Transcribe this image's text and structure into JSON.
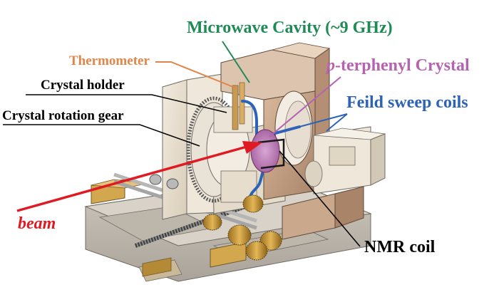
{
  "diagram": {
    "labels": {
      "microwave_cavity": "Microwave Cavity (~9 GHz)",
      "thermometer": "Thermometer",
      "crystal_holder": "Crystal holder",
      "crystal_rotation_gear": "Crystal rotation gear",
      "crystal_prefix": "p",
      "crystal_suffix": "-terphenyl Crystal",
      "field_sweep_coils": "Feild sweep coils",
      "beam": "beam",
      "nmr_coil": "NMR coil"
    },
    "colors": {
      "microwave_cavity": "#1f8a55",
      "thermometer": "#e0864a",
      "crystal": "#b562b0",
      "field_sweep_coils": "#2d63b6",
      "beam": "#e01a22",
      "black_labels": "#000000",
      "body": "#ece3d4",
      "copper": "#c8a68a",
      "brass": "#c89a3c"
    }
  }
}
